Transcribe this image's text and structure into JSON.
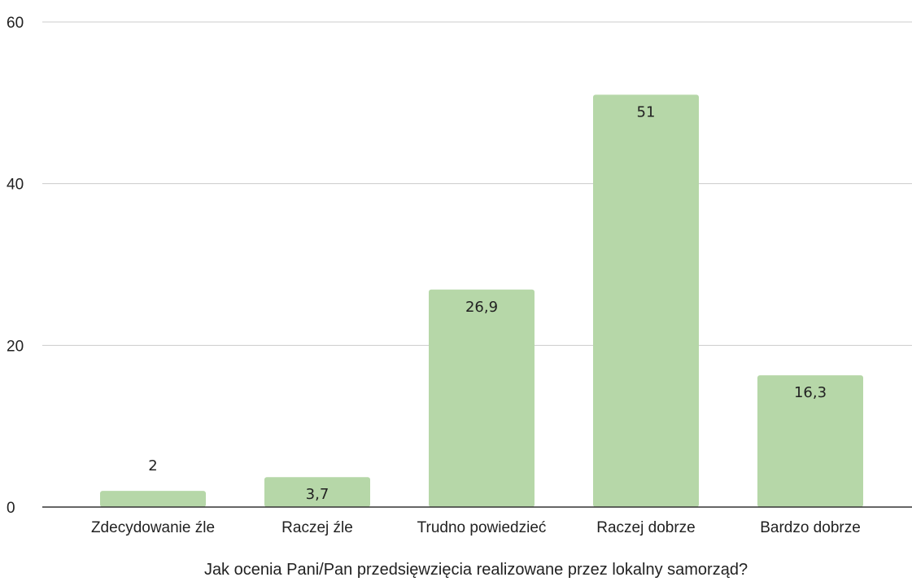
{
  "chart_data": {
    "type": "bar",
    "categories": [
      "Zdecydowanie źle",
      "Raczej źle",
      "Trudno powiedzieć",
      "Raczej dobrze",
      "Bardzo dobrze"
    ],
    "values": [
      2,
      3.7,
      26.9,
      51,
      16.3
    ],
    "value_labels": [
      "2",
      "3,7",
      "26,9",
      "51",
      "16,3"
    ],
    "title": "",
    "xlabel": "Jak ocenia Pani/Pan przedsięwzięcia realizowane przez lokalny samorząd?",
    "ylabel": "",
    "ylim": [
      0,
      60
    ],
    "yticks": [
      "0",
      "20",
      "40",
      "60"
    ],
    "grid": true,
    "legend": "none",
    "colors": {
      "bar": "#b6d7a8",
      "grid": "#cccccc",
      "axis": "#333333",
      "label_outside": "#b6d7a8",
      "label_inside": "#222222"
    }
  }
}
